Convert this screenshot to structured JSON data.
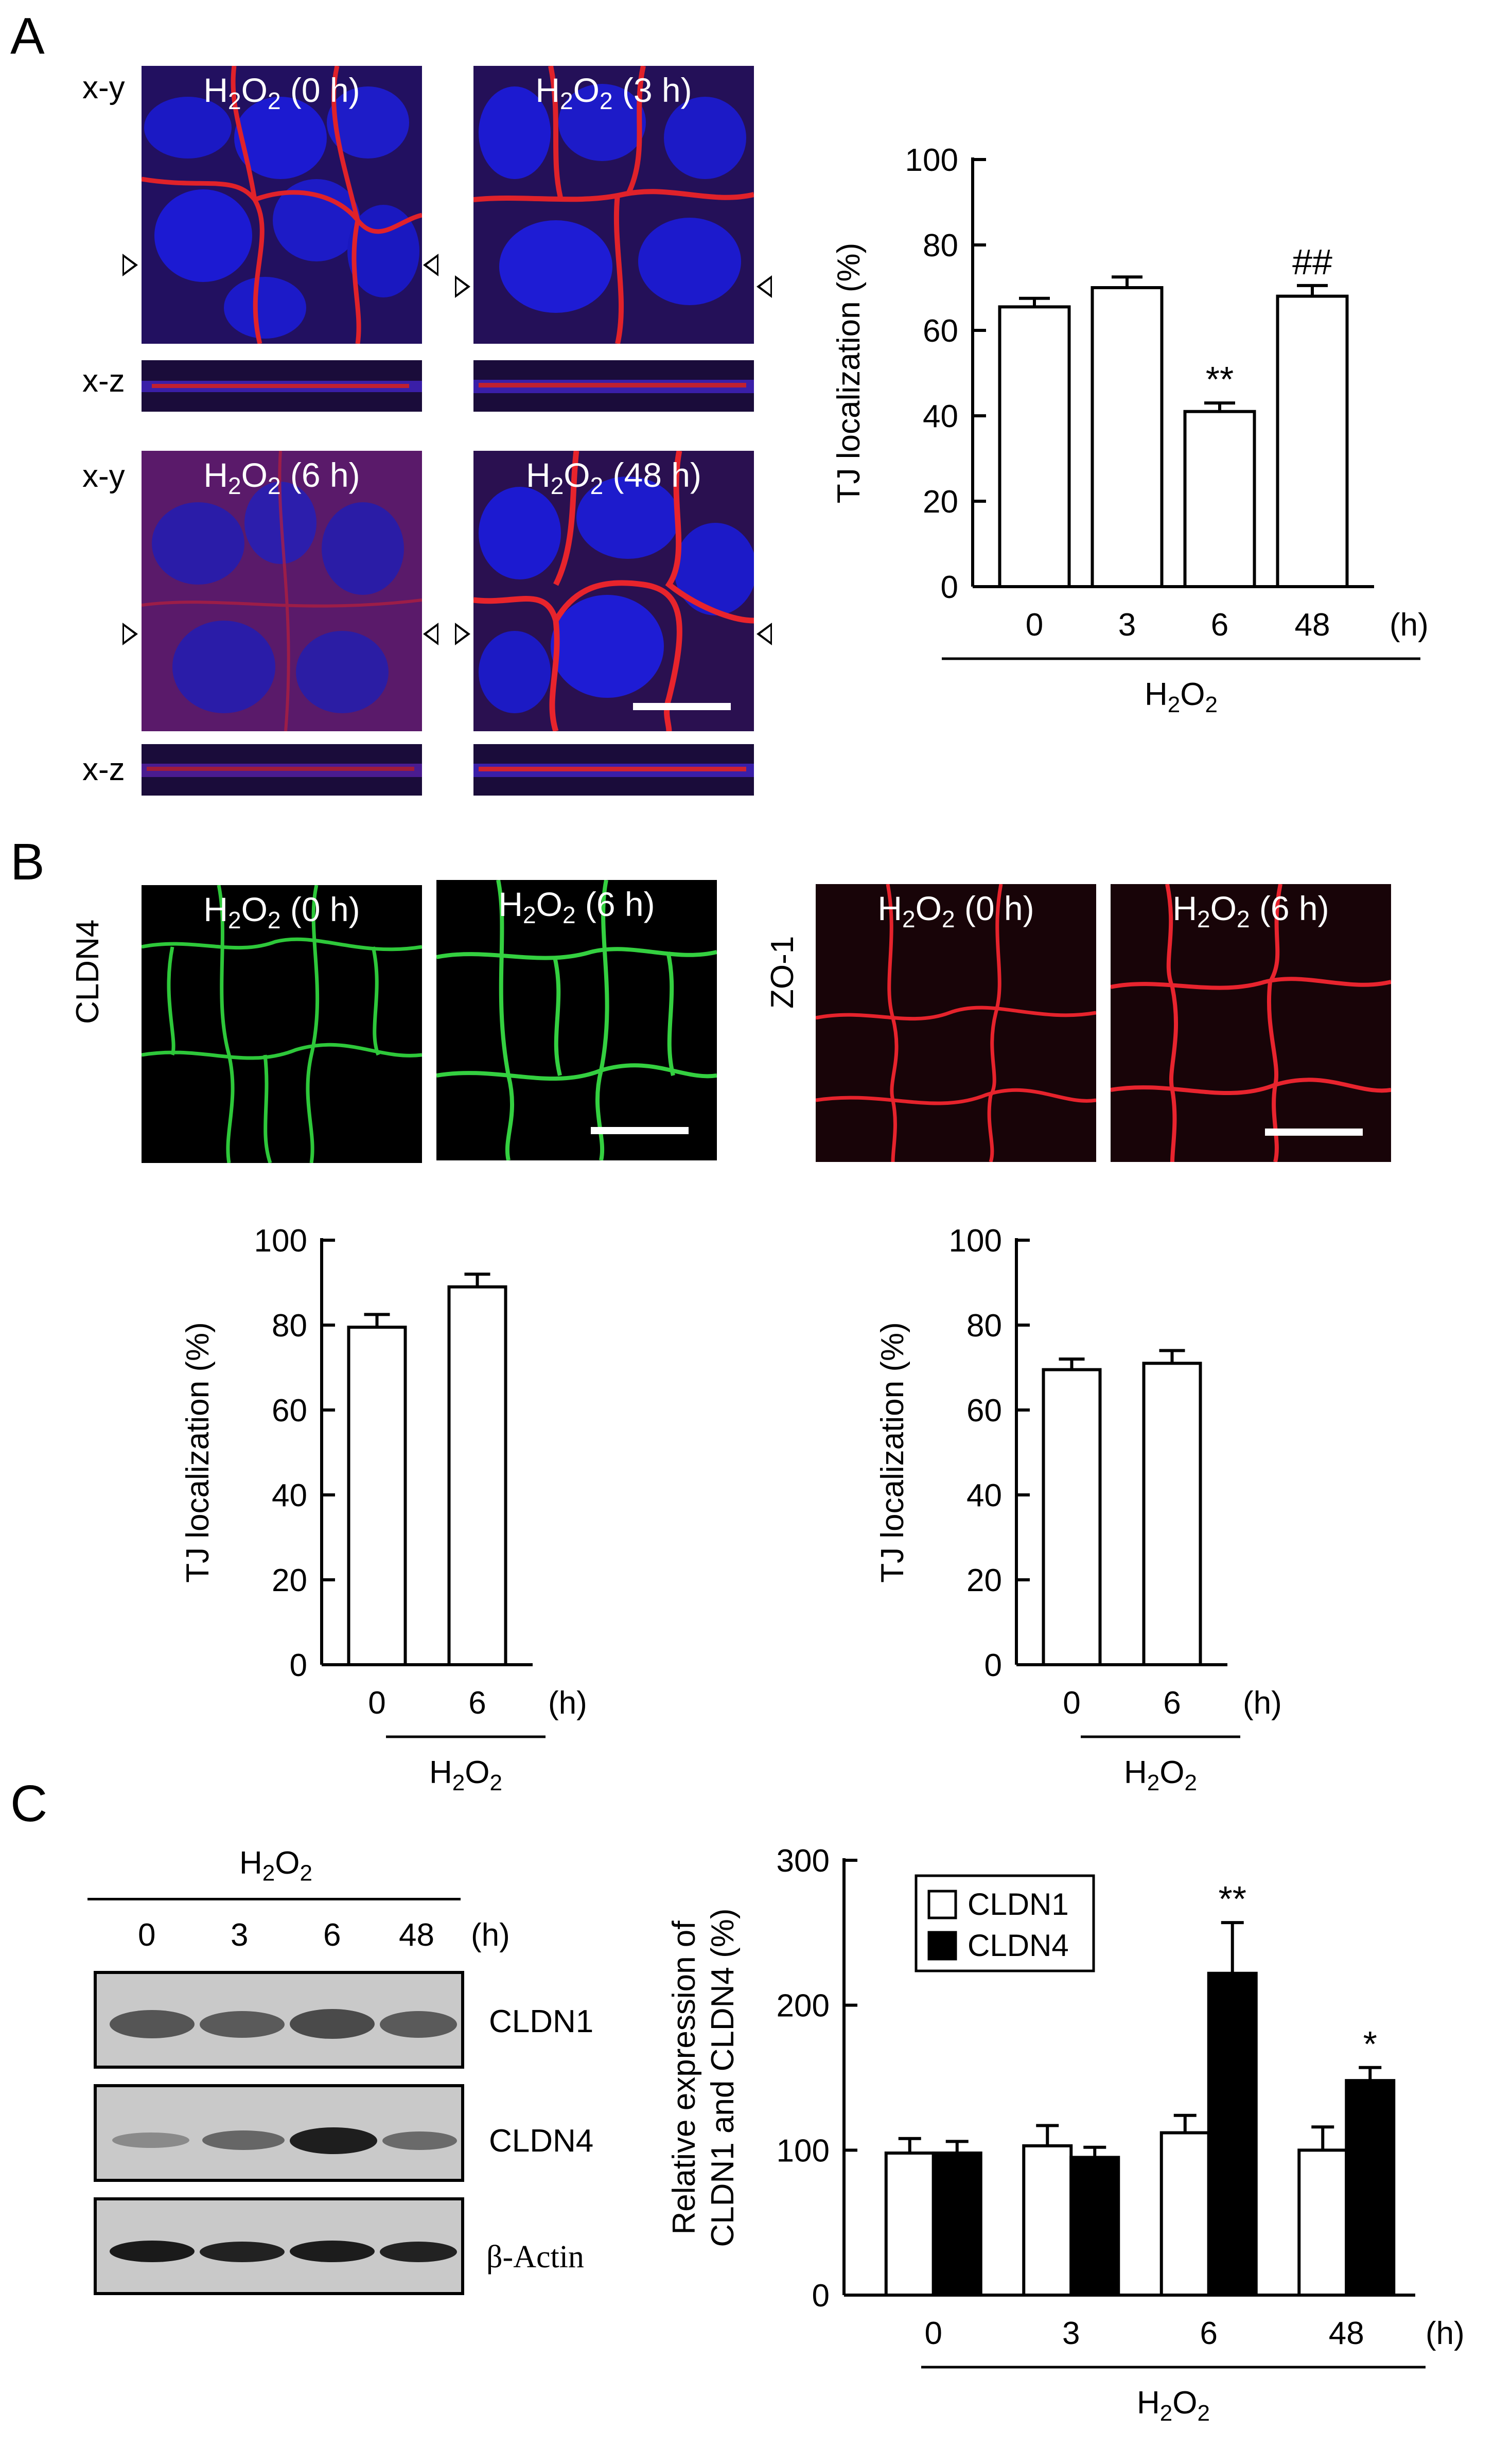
{
  "panels": {
    "A": {
      "letter": "A",
      "micrographs": [
        {
          "title_pre": "H",
          "title_sub1": "2",
          "title_mid": "O",
          "title_sub2": "2",
          "title_post": " (0 h)",
          "row_label_xy": "x-y",
          "row_label_xz": "x-z"
        },
        {
          "title_pre": "H",
          "title_sub1": "2",
          "title_mid": "O",
          "title_sub2": "2",
          "title_post": " (3 h)"
        },
        {
          "title_pre": "H",
          "title_sub1": "2",
          "title_mid": "O",
          "title_sub2": "2",
          "title_post": " (6 h)",
          "row_label_xy": "x-y",
          "row_label_xz": "x-z"
        },
        {
          "title_pre": "H",
          "title_sub1": "2",
          "title_mid": "O",
          "title_sub2": "2",
          "title_post": " (48 h)"
        }
      ]
    },
    "B": {
      "letter": "B",
      "left_label": "CLDN4",
      "right_label": "ZO-1",
      "micrographs": [
        {
          "title_post": " (0 h)",
          "stain": "green"
        },
        {
          "title_post": " (6 h)",
          "stain": "green"
        },
        {
          "title_post": " (0 h)",
          "stain": "red"
        },
        {
          "title_post": " (6 h)",
          "stain": "red"
        }
      ]
    },
    "C": {
      "letter": "C",
      "blot_header": "H2O2",
      "lanes": [
        "0",
        "3",
        "6",
        "48"
      ],
      "unit": "(h)",
      "bands": [
        "CLDN1",
        "CLDN4",
        "β-Actin"
      ]
    }
  },
  "chart_data": [
    {
      "id": "A-chart",
      "type": "bar",
      "categories": [
        "0",
        "3",
        "6",
        "48"
      ],
      "values": [
        65.5,
        70,
        41,
        68
      ],
      "errors": [
        2,
        2.5,
        2,
        2.5
      ],
      "annotations": [
        "",
        "",
        "**",
        "##"
      ],
      "ylabel": "TJ localization (%)",
      "xunit": "(h)",
      "xgroup": "H2O2",
      "yticks": [
        0,
        20,
        40,
        60,
        80,
        100
      ],
      "ylim": [
        0,
        100
      ]
    },
    {
      "id": "B-left-chart",
      "type": "bar",
      "categories": [
        "0",
        "6"
      ],
      "values": [
        79.5,
        89
      ],
      "errors": [
        3,
        3
      ],
      "ylabel": "TJ localization (%)",
      "xunit": "(h)",
      "xgroup": "H2O2",
      "yticks": [
        0,
        20,
        40,
        60,
        80,
        100
      ],
      "ylim": [
        0,
        100
      ]
    },
    {
      "id": "B-right-chart",
      "type": "bar",
      "categories": [
        "0",
        "6"
      ],
      "values": [
        69.5,
        71
      ],
      "errors": [
        2.5,
        3
      ],
      "ylabel": "TJ localization (%)",
      "xunit": "(h)",
      "xgroup": "H2O2",
      "yticks": [
        0,
        20,
        40,
        60,
        80,
        100
      ],
      "ylim": [
        0,
        100
      ]
    },
    {
      "id": "C-chart",
      "type": "bar",
      "categories": [
        "0",
        "3",
        "6",
        "48"
      ],
      "series": [
        {
          "name": "CLDN1",
          "values": [
            98,
            103,
            112,
            100
          ],
          "errors": [
            10,
            14,
            12,
            16
          ],
          "annotations": [
            "",
            "",
            "",
            ""
          ],
          "color": "#ffffff"
        },
        {
          "name": "CLDN4",
          "values": [
            98,
            95,
            222,
            148
          ],
          "errors": [
            8,
            7,
            35,
            9
          ],
          "annotations": [
            "",
            "",
            "**",
            "*"
          ],
          "color": "#000000"
        }
      ],
      "ylabel_line1": "Relative expression of",
      "ylabel_line2": "CLDN1 and CLDN4 (%)",
      "xunit": "(h)",
      "xgroup": "H2O2",
      "yticks": [
        0,
        100,
        200,
        300
      ],
      "ylim": [
        0,
        300
      ],
      "legend": "top-left"
    }
  ]
}
